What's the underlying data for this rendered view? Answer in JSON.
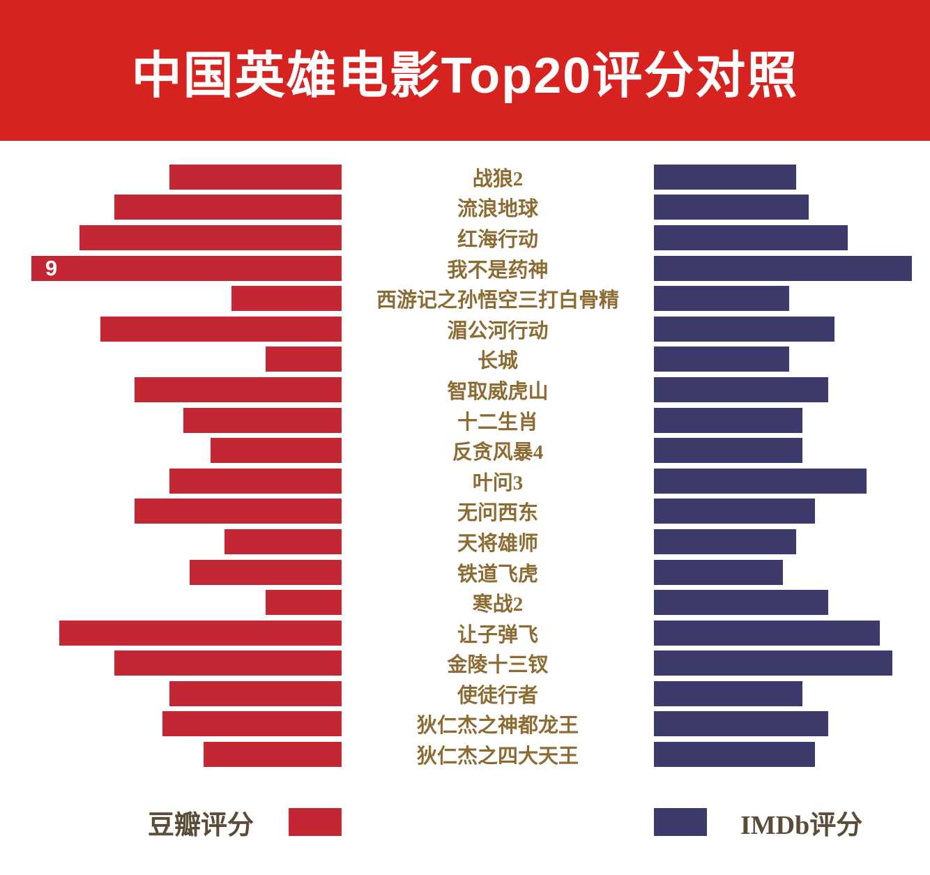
{
  "header": {
    "title": "中国英雄电影Top20评分对照"
  },
  "legend": {
    "douban_label": "豆瓣评分",
    "imdb_label": "IMDb评分"
  },
  "colors": {
    "banner_red": "#d7231f",
    "douban_bar_red": "#c32733",
    "imdb_bar_navy": "#3b3a6b",
    "movie_title_gold": "#8c6c33",
    "legend_text_brown": "#5b4c38",
    "title_text": "#ffffff",
    "bar_value_label": "#ffffff",
    "background": "#ffffff"
  },
  "chart_data": {
    "type": "bar",
    "variant": "diverging-horizontal-tornado",
    "title": "中国英雄电影Top20评分对照",
    "grid": false,
    "legend_position": "bottom",
    "categories": [
      "战狼2",
      "流浪地球",
      "红海行动",
      "我不是药神",
      "西游记之孙悟空三打白骨精",
      "湄公河行动",
      "长城",
      "智取威虎山",
      "十二生肖",
      "反贪风暴4",
      "叶问3",
      "无问西东",
      "天将雄师",
      "铁道飞虎",
      "寒战2",
      "让子弹飞",
      "金陵十三钗",
      "使徒行者",
      "狄仁杰之神都龙王",
      "狄仁杰之四大天王"
    ],
    "series": [
      {
        "name": "豆瓣评分",
        "side": "left",
        "color": "#c32733",
        "values": [
          7.0,
          7.8,
          8.3,
          9.0,
          6.1,
          8.0,
          5.6,
          7.5,
          6.8,
          6.4,
          7.0,
          7.5,
          6.2,
          6.7,
          5.6,
          8.6,
          7.8,
          7.0,
          7.1,
          6.5
        ]
      },
      {
        "name": "IMDb评分",
        "side": "right",
        "color": "#3b3a6b",
        "values": [
          6.0,
          6.2,
          6.8,
          7.8,
          5.9,
          6.6,
          5.9,
          6.5,
          6.1,
          6.1,
          7.1,
          6.3,
          6.0,
          5.8,
          6.5,
          7.3,
          7.5,
          6.1,
          6.5,
          6.3
        ]
      }
    ],
    "data_labels": [
      {
        "category": "我不是药神",
        "series": "豆瓣评分",
        "text": "9"
      }
    ],
    "axes": {
      "douban": {
        "min": 4.5,
        "max": 9.0
      },
      "imdb": {
        "min": 3.8,
        "max": 7.8
      }
    }
  }
}
